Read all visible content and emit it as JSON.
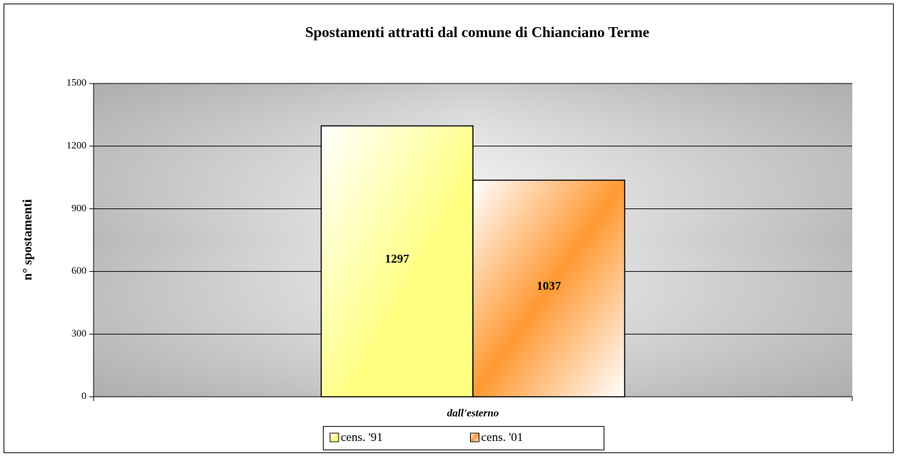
{
  "chart_data": {
    "type": "bar",
    "title": "Spostamenti attratti dal comune di Chianciano Terme",
    "y_label": "n° spostamenti",
    "categories": [
      "dall'esterno"
    ],
    "series": [
      {
        "name": "cens. '91",
        "color": "#ffff80",
        "values": [
          1297
        ]
      },
      {
        "name": "cens. '01",
        "color": "#ff9933",
        "values": [
          1037
        ]
      }
    ],
    "ylim": [
      0,
      1500
    ],
    "yticks": [
      0,
      300,
      600,
      900,
      1200,
      1500
    ],
    "grid": true,
    "legend": "bottom",
    "data_labels": true
  }
}
